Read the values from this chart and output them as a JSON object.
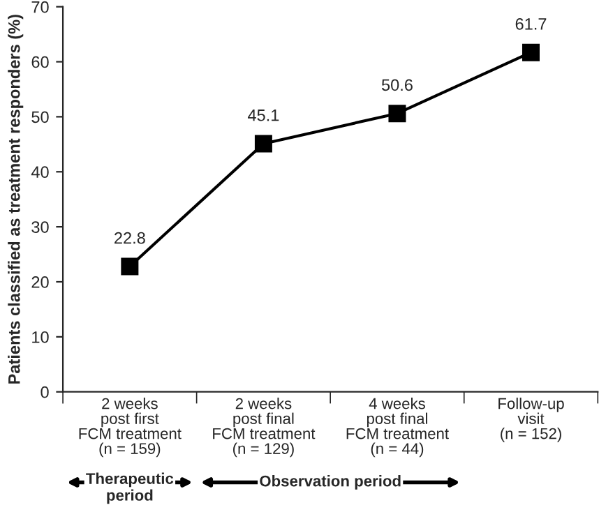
{
  "chart_data": {
    "type": "line",
    "ylabel": "Patients classified as treatment responders (%)",
    "categories": [
      "2 weeks\npost first\nFCM treatment\n(n = 159)",
      "2 weeks\npost final\nFCM treatment\n(n = 129)",
      "4 weeks\npost final\nFCM treatment\n(n = 44)",
      "Follow-up\nvisit\n(n = 152)"
    ],
    "series": [
      {
        "color": "#000000",
        "values": [
          22.8,
          45.1,
          50.6,
          61.7
        ]
      }
    ],
    "ylim": [
      0,
      70
    ],
    "yticks": [
      0,
      10,
      20,
      30,
      40,
      50,
      60,
      70
    ],
    "marker": "square",
    "line_style": "solid",
    "data_labels": true,
    "grid": false,
    "legend": false,
    "annotations": [
      "Therapeutic\nperiod",
      "Observation period"
    ]
  }
}
